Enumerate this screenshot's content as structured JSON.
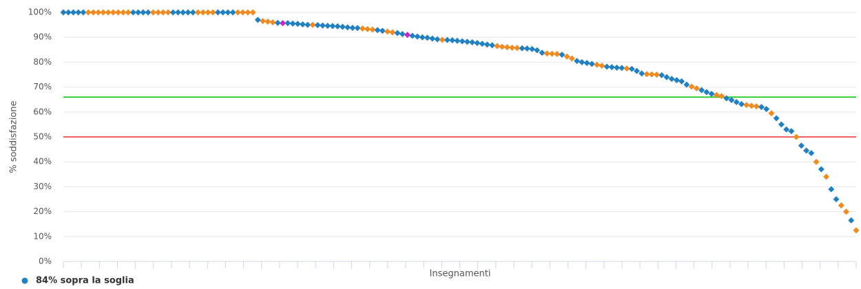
{
  "chart_data": {
    "type": "scatter",
    "y_axis_title": "% soddisfazione",
    "x_axis_title": "Insegnamenti",
    "ylim": [
      0,
      100
    ],
    "yticks": [
      {
        "value": 0,
        "label": "0%"
      },
      {
        "value": 10,
        "label": "10%"
      },
      {
        "value": 20,
        "label": "20%"
      },
      {
        "value": 30,
        "label": "30%"
      },
      {
        "value": 40,
        "label": "40%"
      },
      {
        "value": 50,
        "label": "50%"
      },
      {
        "value": 60,
        "label": "60%"
      },
      {
        "value": 70,
        "label": "70%"
      },
      {
        "value": 80,
        "label": "80%"
      },
      {
        "value": 90,
        "label": "90%"
      },
      {
        "value": 100,
        "label": "100%"
      }
    ],
    "grid": true,
    "reference_lines": [
      {
        "value": 66,
        "color": "#33cc33"
      },
      {
        "value": 50,
        "color": "#f06060"
      }
    ],
    "series": [
      {
        "name": "84% sopra la soglia",
        "color": "#1f80c2",
        "values": [
          100,
          100,
          100,
          100,
          100,
          100,
          100,
          100,
          100,
          100,
          100,
          100,
          100,
          100,
          100,
          100,
          100,
          100,
          100,
          100,
          100,
          100,
          100,
          100,
          100,
          100,
          100,
          100,
          100,
          100,
          100,
          100,
          100,
          100,
          100,
          100,
          100,
          100,
          100,
          97,
          96.5,
          96.3,
          96,
          95.8,
          95.7,
          95.7,
          95.5,
          95.4,
          95.2,
          95,
          95,
          94.9,
          94.7,
          94.6,
          94.5,
          94.4,
          94.2,
          94,
          93.8,
          93.7,
          93.5,
          93.3,
          93.1,
          92.9,
          92.6,
          92.3,
          92,
          91.7,
          91.3,
          91,
          90.6,
          90.3,
          90,
          89.8,
          89.5,
          89.2,
          89,
          88.9,
          88.8,
          88.6,
          88.4,
          88.2,
          88,
          87.7,
          87.4,
          87.1,
          86.8,
          86.5,
          86.2,
          86,
          85.8,
          85.7,
          85.6,
          85.5,
          85.3,
          84.8,
          83.8,
          83.5,
          83.4,
          83.3,
          83,
          82.3,
          81.5,
          80.5,
          80,
          79.7,
          79.3,
          79,
          78.6,
          78.2,
          78,
          77.8,
          77.7,
          77.5,
          77.3,
          76.5,
          75.5,
          75.2,
          75.1,
          75,
          74.8,
          74,
          73.3,
          72.8,
          72.3,
          71,
          70.2,
          69.5,
          68.8,
          68,
          67.3,
          66.8,
          66.4,
          65.5,
          64.8,
          64,
          63.2,
          62.8,
          62.5,
          62.3,
          62,
          61.2,
          59.5,
          57.5,
          55,
          53,
          52.3,
          50,
          46.5,
          44.5,
          43.5,
          40,
          37,
          34,
          29,
          25,
          22.5,
          20,
          16.5,
          12.5
        ],
        "point_colors": [
          "#1f80c2",
          "#1f80c2",
          "#1f80c2",
          "#1f80c2",
          "#1f80c2",
          "#f28a1e",
          "#f28a1e",
          "#f28a1e",
          "#f28a1e",
          "#f28a1e",
          "#f28a1e",
          "#f28a1e",
          "#f28a1e",
          "#f28a1e",
          "#1f80c2",
          "#1f80c2",
          "#1f80c2",
          "#1f80c2",
          "#f28a1e",
          "#f28a1e",
          "#f28a1e",
          "#f28a1e",
          "#1f80c2",
          "#1f80c2",
          "#1f80c2",
          "#1f80c2",
          "#1f80c2",
          "#f28a1e",
          "#f28a1e",
          "#f28a1e",
          "#f28a1e",
          "#1f80c2",
          "#1f80c2",
          "#1f80c2",
          "#1f80c2",
          "#f28a1e",
          "#f28a1e",
          "#f28a1e",
          "#f28a1e",
          "#1f80c2",
          "#f28a1e",
          "#f28a1e",
          "#f28a1e",
          "#1f80c2",
          "#cc22cc",
          "#1f80c2",
          "#1f80c2",
          "#1f80c2",
          "#1f80c2",
          "#1f80c2",
          "#f28a1e",
          "#1f80c2",
          "#1f80c2",
          "#1f80c2",
          "#1f80c2",
          "#1f80c2",
          "#1f80c2",
          "#1f80c2",
          "#1f80c2",
          "#1f80c2",
          "#f28a1e",
          "#f28a1e",
          "#f28a1e",
          "#1f80c2",
          "#1f80c2",
          "#f28a1e",
          "#f28a1e",
          "#1f80c2",
          "#1f80c2",
          "#cc22cc",
          "#1f80c2",
          "#1f80c2",
          "#1f80c2",
          "#1f80c2",
          "#1f80c2",
          "#1f80c2",
          "#f28a1e",
          "#1f80c2",
          "#1f80c2",
          "#1f80c2",
          "#1f80c2",
          "#1f80c2",
          "#1f80c2",
          "#1f80c2",
          "#1f80c2",
          "#1f80c2",
          "#1f80c2",
          "#f28a1e",
          "#f28a1e",
          "#f28a1e",
          "#f28a1e",
          "#f28a1e",
          "#1f80c2",
          "#1f80c2",
          "#1f80c2",
          "#1f80c2",
          "#1f80c2",
          "#f28a1e",
          "#f28a1e",
          "#f28a1e",
          "#1f80c2",
          "#f28a1e",
          "#f28a1e",
          "#1f80c2",
          "#1f80c2",
          "#1f80c2",
          "#1f80c2",
          "#f28a1e",
          "#f28a1e",
          "#1f80c2",
          "#1f80c2",
          "#1f80c2",
          "#1f80c2",
          "#f28a1e",
          "#1f80c2",
          "#1f80c2",
          "#1f80c2",
          "#f28a1e",
          "#f28a1e",
          "#f28a1e",
          "#1f80c2",
          "#1f80c2",
          "#1f80c2",
          "#1f80c2",
          "#1f80c2",
          "#1f80c2",
          "#f28a1e",
          "#f28a1e",
          "#1f80c2",
          "#1f80c2",
          "#1f80c2",
          "#f28a1e",
          "#f28a1e",
          "#1f80c2",
          "#1f80c2",
          "#1f80c2",
          "#1f80c2",
          "#f28a1e",
          "#f28a1e",
          "#f28a1e",
          "#1f80c2",
          "#1f80c2",
          "#f28a1e",
          "#1f80c2",
          "#1f80c2",
          "#1f80c2",
          "#1f80c2",
          "#f28a1e",
          "#1f80c2",
          "#1f80c2",
          "#1f80c2",
          "#f28a1e",
          "#1f80c2",
          "#f28a1e",
          "#1f80c2",
          "#1f80c2",
          "#f28a1e",
          "#f28a1e",
          "#1f80c2",
          "#f28a1e"
        ]
      }
    ]
  }
}
